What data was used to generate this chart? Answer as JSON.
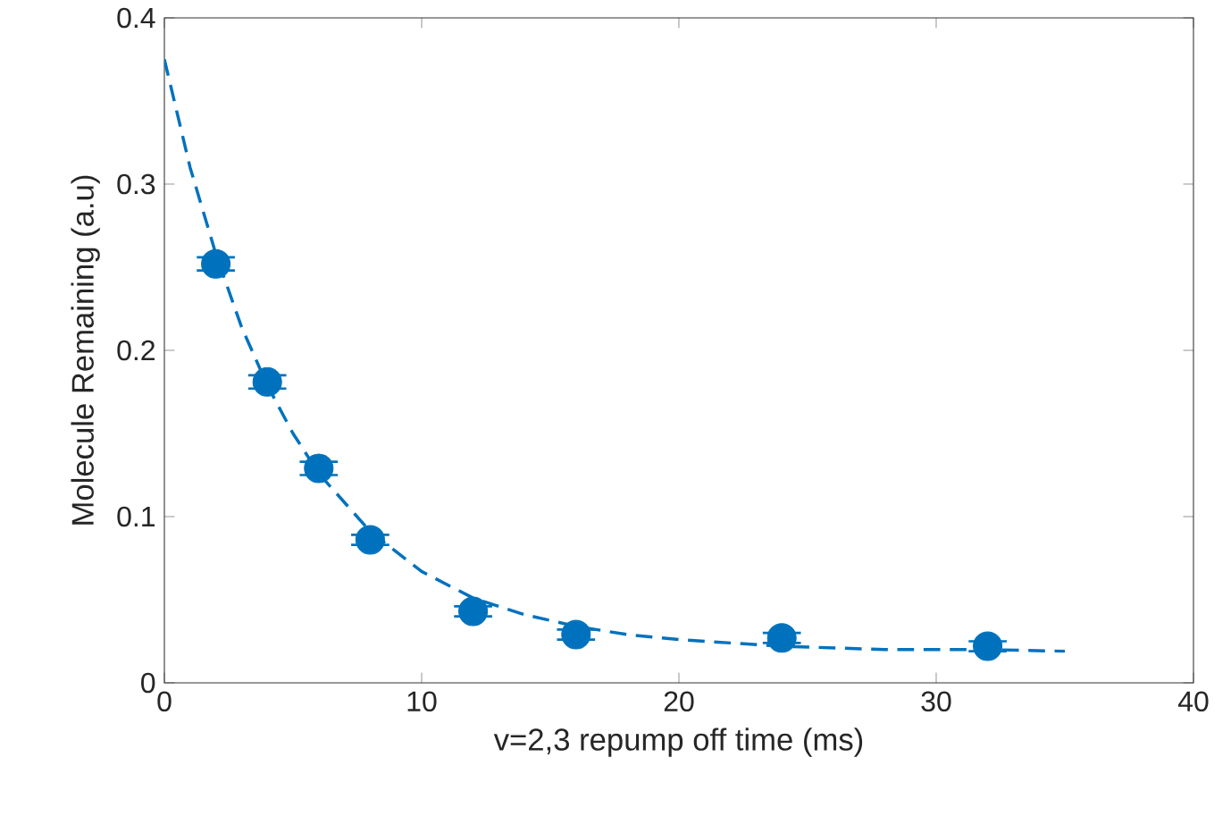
{
  "chart_data": {
    "type": "scatter",
    "xlabel": "v=2,3 repump off time (ms)",
    "ylabel": "Molecule Remaining (a.u)",
    "xlim": [
      0,
      40
    ],
    "ylim": [
      0,
      0.4
    ],
    "xticks": [
      0,
      10,
      20,
      30,
      40
    ],
    "yticks": [
      0,
      0.1,
      0.2,
      0.3,
      0.4
    ],
    "grid": false,
    "legend": false,
    "series": [
      {
        "color": "#0072bd",
        "marker": "circle",
        "x": [
          2,
          4,
          6,
          8,
          12,
          16,
          24,
          32
        ],
        "values": [
          0.252,
          0.181,
          0.129,
          0.086,
          0.043,
          0.029,
          0.027,
          0.022
        ],
        "errors": [
          0.004,
          0.004,
          0.004,
          0.003,
          0.003,
          0.003,
          0.003,
          0.003
        ]
      },
      {
        "type": "line",
        "color": "#0072bd",
        "marker": "none",
        "line_style": "dashed",
        "x": [
          0,
          1,
          2,
          3,
          4,
          5,
          6,
          8,
          10,
          12,
          14,
          16,
          18,
          20,
          24,
          28,
          32,
          35
        ],
        "values": [
          0.375,
          0.31,
          0.258,
          0.214,
          0.179,
          0.15,
          0.126,
          0.091,
          0.067,
          0.051,
          0.041,
          0.034,
          0.029,
          0.026,
          0.022,
          0.02,
          0.02,
          0.019
        ]
      }
    ]
  }
}
